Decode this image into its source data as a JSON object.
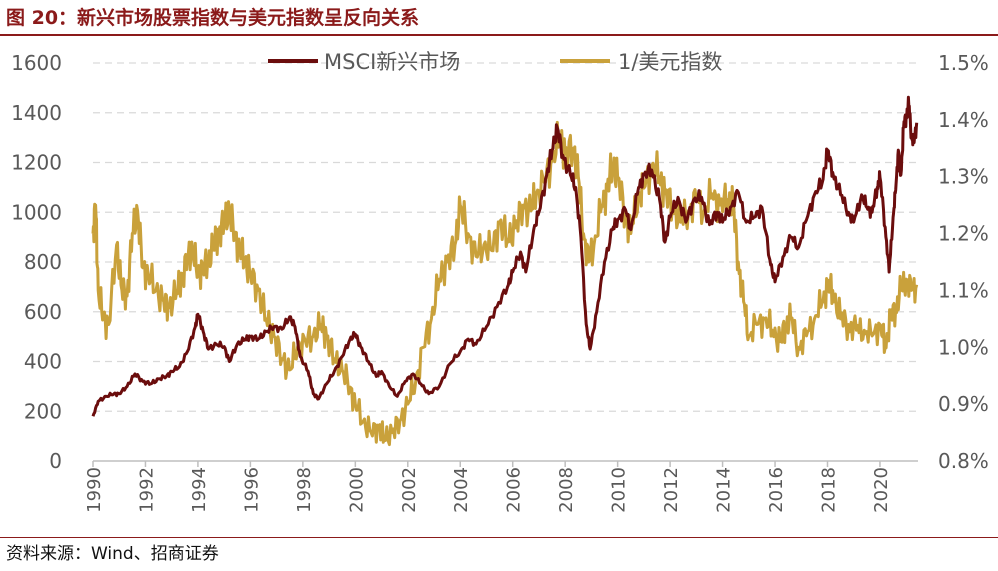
{
  "header": {
    "title": "图 20：新兴市场股票指数与美元指数呈反向关系"
  },
  "footer": {
    "source": "资料来源：Wind、招商证券"
  },
  "colors": {
    "msci": "#6b0d0d",
    "usd": "#c9a13b",
    "grid": "#d9d9d9",
    "accent": "#8b1a1a"
  },
  "chart_data": {
    "type": "line",
    "title": "新兴市场股票指数与美元指数呈反向关系",
    "x_range": [
      1990,
      2020.5
    ],
    "x_ticks": [
      "1990",
      "1992",
      "1994",
      "1996",
      "1998",
      "2000",
      "2002",
      "2004",
      "2006",
      "2008",
      "2010",
      "2012",
      "2014",
      "2016",
      "2018",
      "2020"
    ],
    "y_left": {
      "label": "",
      "range": [
        0,
        1600
      ],
      "ticks": [
        "0",
        "200",
        "400",
        "600",
        "800",
        "1000",
        "1200",
        "1400",
        "1600"
      ]
    },
    "y_right": {
      "label": "",
      "range": [
        0.8,
        1.5
      ],
      "ticks": [
        "0.8%",
        "0.9%",
        "1.0%",
        "1.1%",
        "1.2%",
        "1.3%",
        "1.4%",
        "1.5%"
      ]
    },
    "legend_position": "top-center",
    "series": [
      {
        "name": "MSCI新兴市场",
        "axis": "left",
        "points": [
          [
            1990.0,
            180
          ],
          [
            1990.2,
            240
          ],
          [
            1990.5,
            260
          ],
          [
            1990.8,
            270
          ],
          [
            1991.0,
            270
          ],
          [
            1991.3,
            300
          ],
          [
            1991.6,
            350
          ],
          [
            1991.9,
            320
          ],
          [
            1992.2,
            310
          ],
          [
            1992.5,
            330
          ],
          [
            1992.8,
            340
          ],
          [
            1993.0,
            360
          ],
          [
            1993.3,
            380
          ],
          [
            1993.6,
            440
          ],
          [
            1993.9,
            540
          ],
          [
            1994.0,
            590
          ],
          [
            1994.2,
            520
          ],
          [
            1994.4,
            450
          ],
          [
            1994.7,
            470
          ],
          [
            1995.0,
            460
          ],
          [
            1995.2,
            400
          ],
          [
            1995.5,
            470
          ],
          [
            1995.8,
            490
          ],
          [
            1996.0,
            500
          ],
          [
            1996.3,
            490
          ],
          [
            1996.6,
            520
          ],
          [
            1996.9,
            540
          ],
          [
            1997.2,
            530
          ],
          [
            1997.5,
            580
          ],
          [
            1997.7,
            540
          ],
          [
            1997.9,
            420
          ],
          [
            1998.2,
            360
          ],
          [
            1998.4,
            270
          ],
          [
            1998.6,
            250
          ],
          [
            1998.9,
            310
          ],
          [
            1999.2,
            360
          ],
          [
            1999.5,
            420
          ],
          [
            1999.8,
            490
          ],
          [
            2000.0,
            510
          ],
          [
            2000.2,
            460
          ],
          [
            2000.5,
            400
          ],
          [
            2000.8,
            340
          ],
          [
            2001.0,
            360
          ],
          [
            2001.3,
            300
          ],
          [
            2001.6,
            260
          ],
          [
            2001.9,
            320
          ],
          [
            2002.2,
            350
          ],
          [
            2002.5,
            310
          ],
          [
            2002.8,
            270
          ],
          [
            2003.2,
            300
          ],
          [
            2003.6,
            390
          ],
          [
            2004.0,
            440
          ],
          [
            2004.3,
            490
          ],
          [
            2004.6,
            470
          ],
          [
            2005.0,
            540
          ],
          [
            2005.4,
            620
          ],
          [
            2005.8,
            700
          ],
          [
            2006.0,
            760
          ],
          [
            2006.3,
            840
          ],
          [
            2006.5,
            760
          ],
          [
            2006.8,
            930
          ],
          [
            2007.0,
            1000
          ],
          [
            2007.3,
            1150
          ],
          [
            2007.5,
            1250
          ],
          [
            2007.7,
            1340
          ],
          [
            2007.9,
            1230
          ],
          [
            2008.2,
            1150
          ],
          [
            2008.4,
            1100
          ],
          [
            2008.6,
            900
          ],
          [
            2008.8,
            550
          ],
          [
            2008.95,
            450
          ],
          [
            2009.2,
            600
          ],
          [
            2009.5,
            800
          ],
          [
            2009.8,
            930
          ],
          [
            2010.0,
            970
          ],
          [
            2010.3,
            1010
          ],
          [
            2010.5,
            930
          ],
          [
            2010.8,
            1100
          ],
          [
            2011.0,
            1150
          ],
          [
            2011.3,
            1170
          ],
          [
            2011.6,
            1050
          ],
          [
            2011.8,
            880
          ],
          [
            2012.0,
            980
          ],
          [
            2012.3,
            1060
          ],
          [
            2012.6,
            960
          ],
          [
            2012.9,
            1050
          ],
          [
            2013.2,
            1060
          ],
          [
            2013.5,
            950
          ],
          [
            2013.8,
            1000
          ],
          [
            2014.0,
            960
          ],
          [
            2014.3,
            1020
          ],
          [
            2014.6,
            1080
          ],
          [
            2014.9,
            960
          ],
          [
            2015.2,
            980
          ],
          [
            2015.5,
            1020
          ],
          [
            2015.8,
            810
          ],
          [
            2016.0,
            720
          ],
          [
            2016.3,
            820
          ],
          [
            2016.6,
            900
          ],
          [
            2016.9,
            860
          ],
          [
            2017.2,
            970
          ],
          [
            2017.5,
            1070
          ],
          [
            2017.8,
            1120
          ],
          [
            2018.0,
            1250
          ],
          [
            2018.2,
            1160
          ],
          [
            2018.5,
            1070
          ],
          [
            2018.8,
            1000
          ],
          [
            2019.0,
            960
          ],
          [
            2019.3,
            1070
          ],
          [
            2019.5,
            1020
          ],
          [
            2019.7,
            1000
          ],
          [
            2019.9,
            1100
          ],
          [
            2020.0,
            1140
          ],
          [
            2020.2,
            940
          ],
          [
            2020.35,
            760
          ],
          [
            2020.5,
            980
          ],
          [
            2020.6,
            1090
          ],
          [
            2020.7,
            1250
          ],
          [
            2020.8,
            1150
          ],
          [
            2020.9,
            1340
          ],
          [
            2021.0,
            1390
          ],
          [
            2021.1,
            1430
          ],
          [
            2021.2,
            1310
          ],
          [
            2021.3,
            1280
          ],
          [
            2021.4,
            1360
          ]
        ]
      },
      {
        "name": "1/美元指数",
        "axis": "right",
        "points": [
          [
            1990.0,
            1.2
          ],
          [
            1990.1,
            1.25
          ],
          [
            1990.2,
            1.1
          ],
          [
            1990.4,
            1.05
          ],
          [
            1990.6,
            1.04
          ],
          [
            1990.9,
            1.18
          ],
          [
            1991.1,
            1.1
          ],
          [
            1991.3,
            1.09
          ],
          [
            1991.5,
            1.2
          ],
          [
            1991.7,
            1.24
          ],
          [
            1991.9,
            1.14
          ],
          [
            1992.1,
            1.13
          ],
          [
            1992.4,
            1.1
          ],
          [
            1992.7,
            1.08
          ],
          [
            1992.9,
            1.07
          ],
          [
            1993.2,
            1.1
          ],
          [
            1993.4,
            1.12
          ],
          [
            1993.6,
            1.16
          ],
          [
            1993.8,
            1.17
          ],
          [
            1994.0,
            1.13
          ],
          [
            1994.2,
            1.14
          ],
          [
            1994.4,
            1.15
          ],
          [
            1994.6,
            1.18
          ],
          [
            1994.8,
            1.2
          ],
          [
            1995.0,
            1.22
          ],
          [
            1995.2,
            1.24
          ],
          [
            1995.4,
            1.2
          ],
          [
            1995.6,
            1.17
          ],
          [
            1995.8,
            1.15
          ],
          [
            1996.0,
            1.13
          ],
          [
            1996.3,
            1.1
          ],
          [
            1996.6,
            1.05
          ],
          [
            1996.9,
            1.02
          ],
          [
            1997.2,
            0.98
          ],
          [
            1997.5,
            0.96
          ],
          [
            1997.8,
            1.0
          ],
          [
            1998.1,
            1.01
          ],
          [
            1998.4,
            1.02
          ],
          [
            1998.7,
            1.04
          ],
          [
            1998.9,
            1.02
          ],
          [
            1999.2,
            0.98
          ],
          [
            1999.5,
            0.96
          ],
          [
            1999.8,
            0.93
          ],
          [
            2000.0,
            0.9
          ],
          [
            2000.3,
            0.87
          ],
          [
            2000.6,
            0.85
          ],
          [
            2000.9,
            0.86
          ],
          [
            2001.1,
            0.84
          ],
          [
            2001.4,
            0.85
          ],
          [
            2001.7,
            0.87
          ],
          [
            2002.0,
            0.9
          ],
          [
            2002.3,
            0.94
          ],
          [
            2002.6,
            1.0
          ],
          [
            2002.9,
            1.05
          ],
          [
            2003.2,
            1.12
          ],
          [
            2003.5,
            1.15
          ],
          [
            2003.8,
            1.18
          ],
          [
            2004.0,
            1.25
          ],
          [
            2004.3,
            1.2
          ],
          [
            2004.6,
            1.16
          ],
          [
            2004.9,
            1.18
          ],
          [
            2005.2,
            1.17
          ],
          [
            2005.5,
            1.22
          ],
          [
            2005.8,
            1.19
          ],
          [
            2006.1,
            1.21
          ],
          [
            2006.4,
            1.25
          ],
          [
            2006.7,
            1.24
          ],
          [
            2006.9,
            1.27
          ],
          [
            2007.2,
            1.29
          ],
          [
            2007.5,
            1.33
          ],
          [
            2007.8,
            1.37
          ],
          [
            2008.0,
            1.34
          ],
          [
            2008.3,
            1.35
          ],
          [
            2008.5,
            1.3
          ],
          [
            2008.7,
            1.2
          ],
          [
            2008.9,
            1.15
          ],
          [
            2009.1,
            1.18
          ],
          [
            2009.4,
            1.25
          ],
          [
            2009.6,
            1.28
          ],
          [
            2009.8,
            1.32
          ],
          [
            2010.0,
            1.3
          ],
          [
            2010.3,
            1.23
          ],
          [
            2010.5,
            1.2
          ],
          [
            2010.8,
            1.27
          ],
          [
            2011.0,
            1.28
          ],
          [
            2011.3,
            1.32
          ],
          [
            2011.6,
            1.3
          ],
          [
            2011.8,
            1.27
          ],
          [
            2012.1,
            1.25
          ],
          [
            2012.4,
            1.22
          ],
          [
            2012.7,
            1.24
          ],
          [
            2013.0,
            1.26
          ],
          [
            2013.3,
            1.24
          ],
          [
            2013.6,
            1.27
          ],
          [
            2013.9,
            1.25
          ],
          [
            2014.2,
            1.26
          ],
          [
            2014.4,
            1.25
          ],
          [
            2014.6,
            1.15
          ],
          [
            2014.8,
            1.08
          ],
          [
            2015.0,
            1.02
          ],
          [
            2015.3,
            1.04
          ],
          [
            2015.6,
            1.05
          ],
          [
            2015.9,
            1.03
          ],
          [
            2016.2,
            1.01
          ],
          [
            2016.4,
            1.04
          ],
          [
            2016.6,
            1.05
          ],
          [
            2016.9,
            1.0
          ],
          [
            2017.2,
            1.02
          ],
          [
            2017.5,
            1.05
          ],
          [
            2017.8,
            1.08
          ],
          [
            2018.0,
            1.11
          ],
          [
            2018.2,
            1.1
          ],
          [
            2018.5,
            1.05
          ],
          [
            2018.8,
            1.04
          ],
          [
            2019.1,
            1.03
          ],
          [
            2019.4,
            1.03
          ],
          [
            2019.7,
            1.02
          ],
          [
            2020.0,
            1.04
          ],
          [
            2020.2,
            1.0
          ],
          [
            2020.4,
            1.05
          ],
          [
            2020.6,
            1.07
          ],
          [
            2020.8,
            1.1
          ],
          [
            2021.0,
            1.12
          ],
          [
            2021.2,
            1.1
          ],
          [
            2021.4,
            1.11
          ]
        ]
      }
    ]
  }
}
